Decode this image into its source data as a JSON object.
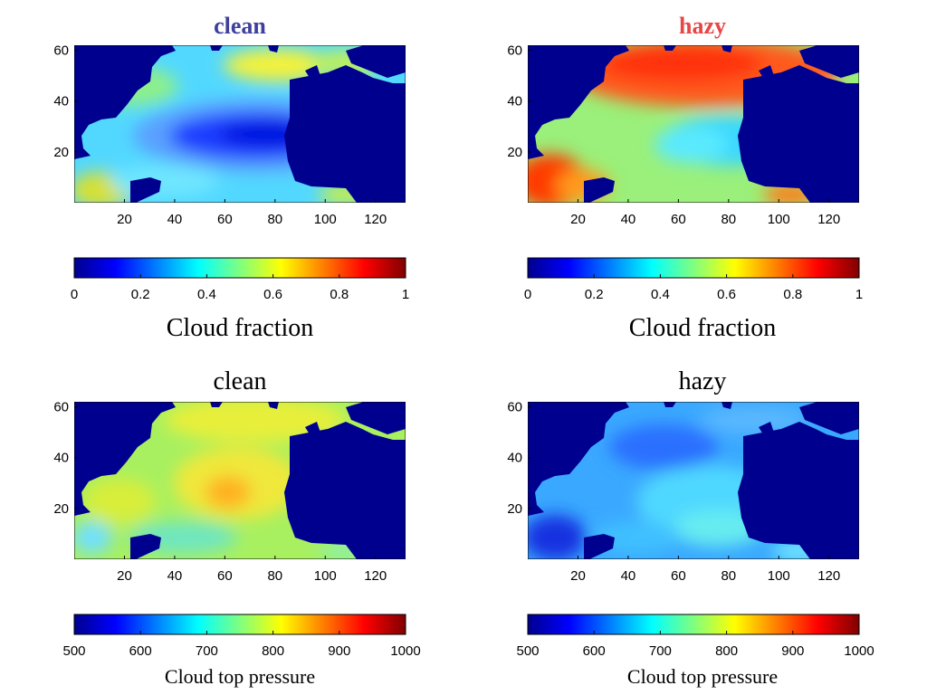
{
  "chart_data": [
    {
      "type": "heatmap",
      "title": "clean",
      "title_color": "#3f3f9f",
      "title_bold": true,
      "xticks": [
        "20",
        "40",
        "60",
        "80",
        "100",
        "120"
      ],
      "yticks": [
        "60",
        "40",
        "20"
      ],
      "xlim": [
        0,
        132
      ],
      "ylim": [
        0,
        62
      ],
      "field": "cloud_fraction_clean",
      "colorbar": {
        "ticks": [
          "0",
          "0.2",
          "0.4",
          "0.6",
          "0.8",
          "1"
        ],
        "range": [
          0,
          1
        ],
        "label": "Cloud fraction"
      }
    },
    {
      "type": "heatmap",
      "title": "hazy",
      "title_color": "#e84646",
      "title_bold": true,
      "xticks": [
        "20",
        "40",
        "60",
        "80",
        "100",
        "120"
      ],
      "yticks": [
        "60",
        "40",
        "20"
      ],
      "xlim": [
        0,
        132
      ],
      "ylim": [
        0,
        62
      ],
      "field": "cloud_fraction_hazy",
      "colorbar": {
        "ticks": [
          "0",
          "0.2",
          "0.4",
          "0.6",
          "0.8",
          "1"
        ],
        "range": [
          0,
          1
        ],
        "label": "Cloud fraction"
      }
    },
    {
      "type": "heatmap",
      "title": "clean",
      "title_color": "#000000",
      "title_bold": false,
      "xticks": [
        "20",
        "40",
        "60",
        "80",
        "100",
        "120"
      ],
      "yticks": [
        "60",
        "40",
        "20"
      ],
      "xlim": [
        0,
        132
      ],
      "ylim": [
        0,
        62
      ],
      "field": "cloud_top_pressure_clean",
      "colorbar": {
        "ticks": [
          "500",
          "600",
          "700",
          "800",
          "900",
          "1000"
        ],
        "range": [
          500,
          1000
        ],
        "label": "Cloud top pressure"
      }
    },
    {
      "type": "heatmap",
      "title": "hazy",
      "title_color": "#000000",
      "title_bold": false,
      "xticks": [
        "20",
        "40",
        "60",
        "80",
        "100",
        "120"
      ],
      "yticks": [
        "60",
        "40",
        "20"
      ],
      "xlim": [
        0,
        132
      ],
      "ylim": [
        0,
        62
      ],
      "field": "cloud_top_pressure_hazy",
      "colorbar": {
        "ticks": [
          "500",
          "600",
          "700",
          "800",
          "900",
          "1000"
        ],
        "range": [
          500,
          1000
        ],
        "label": "Cloud top pressure"
      }
    }
  ],
  "colors": {
    "land": "#00008f",
    "colormap": "jet"
  }
}
